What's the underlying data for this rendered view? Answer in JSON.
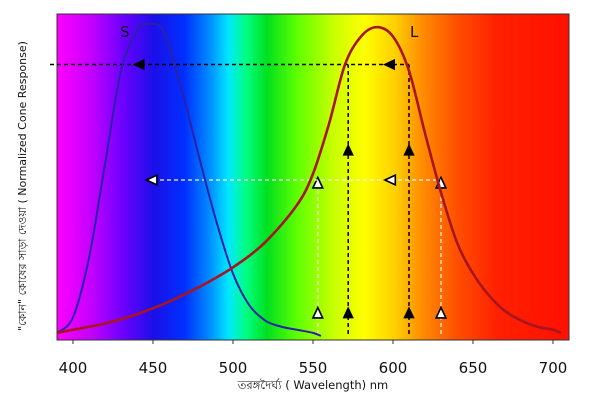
{
  "chart_data": {
    "type": "line",
    "title": "",
    "xlabel": "তরঙ্গদৈর্ঘ্য ( Wavelength) nm",
    "ylabel": "\"কোন\" কোষের সাড়া দেওয়া ( Normalized Cone Response)",
    "xlim": [
      390,
      710
    ],
    "ylim": [
      0,
      1
    ],
    "x_ticks": [
      "400",
      "450",
      "500",
      "550",
      "600",
      "650",
      "700"
    ],
    "x_tick_values": [
      400,
      450,
      500,
      550,
      600,
      650,
      700
    ],
    "grid": false,
    "legend": "none",
    "background": "visible spectrum gradient",
    "series": [
      {
        "name": "S",
        "color": "#2a22a8",
        "x": [
          390,
          400,
          410,
          420,
          430,
          440,
          445,
          450,
          455,
          460,
          470,
          480,
          490,
          500,
          510,
          520,
          530,
          540,
          550,
          555
        ],
        "y": [
          0.01,
          0.06,
          0.25,
          0.55,
          0.85,
          0.98,
          1.0,
          1.0,
          0.99,
          0.93,
          0.75,
          0.55,
          0.36,
          0.2,
          0.1,
          0.05,
          0.03,
          0.02,
          0.01,
          0.0
        ]
      },
      {
        "name": "L",
        "color": "#a81420",
        "x": [
          390,
          400,
          420,
          440,
          460,
          480,
          500,
          520,
          540,
          550,
          560,
          570,
          580,
          590,
          600,
          610,
          620,
          630,
          640,
          650,
          660,
          670,
          680,
          690,
          700,
          705
        ],
        "y": [
          0.01,
          0.02,
          0.04,
          0.07,
          0.11,
          0.16,
          0.22,
          0.3,
          0.42,
          0.52,
          0.68,
          0.87,
          0.96,
          0.99,
          0.96,
          0.85,
          0.65,
          0.46,
          0.3,
          0.2,
          0.13,
          0.08,
          0.05,
          0.03,
          0.02,
          0.01
        ]
      }
    ],
    "annotations": [
      {
        "style": "black dashed",
        "arrow_x": [
          572,
          610
        ],
        "level": 0.87,
        "target_x": 442,
        "marker": "filled"
      },
      {
        "style": "white dashed",
        "arrow_x": [
          553,
          630
        ],
        "level": 0.5,
        "target_x": 450,
        "marker": "hollow"
      }
    ]
  }
}
